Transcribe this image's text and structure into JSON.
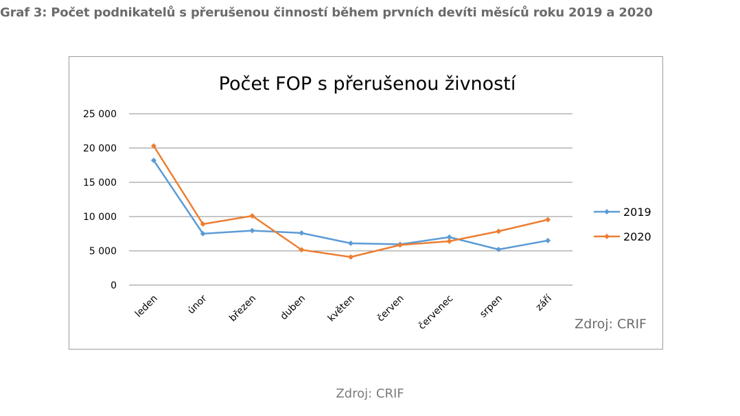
{
  "heading": "Graf 3: Počet podnikatelů s přerušenou činností během prvních devíti měsíců roku 2019 a 2020",
  "caption": "Zdroj: CRIF",
  "chart_data": {
    "type": "line",
    "title": "Počet FOP s přerušenou živností",
    "source_note": "Zdroj: CRIF",
    "categories": [
      "leden",
      "únor",
      "březen",
      "duben",
      "květen",
      "červen",
      "červenec",
      "srpen",
      "září"
    ],
    "series": [
      {
        "name": "2019",
        "color": "#5b9bd5",
        "values": [
          18200,
          7500,
          7950,
          7600,
          6100,
          5950,
          7000,
          5200,
          6500
        ]
      },
      {
        "name": "2020",
        "color": "#ed7d31",
        "values": [
          20300,
          8900,
          10100,
          5150,
          4100,
          5850,
          6400,
          7850,
          9550
        ]
      }
    ],
    "y_ticks": [
      "0",
      "5 000",
      "10 000",
      "15 000",
      "20 000",
      "25 000"
    ],
    "ylim": [
      0,
      25000
    ],
    "grid": true,
    "legend_position": "right"
  }
}
